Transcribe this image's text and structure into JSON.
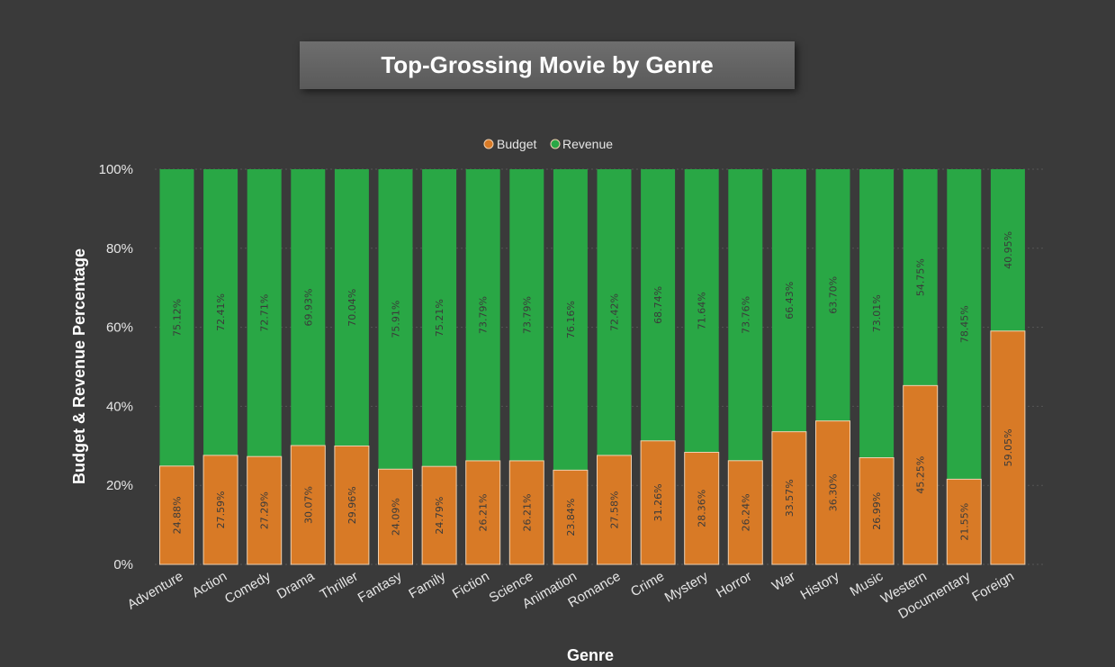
{
  "header": {
    "title": "Top-Grossing Movie by Genre"
  },
  "chart_data": {
    "type": "bar",
    "stacked": "percent",
    "title": "Top-Grossing Movie by Genre",
    "xlabel": "Genre",
    "ylabel": "Budget & Revenue Percentage",
    "ylim": [
      0,
      100
    ],
    "yticks": [
      "0%",
      "20%",
      "40%",
      "60%",
      "80%",
      "100%"
    ],
    "grid": "horizontal dotted",
    "legend_position": "top",
    "categories": [
      "Adventure",
      "Action",
      "Comedy",
      "Drama",
      "Thriller",
      "Fantasy",
      "Family",
      "Fiction",
      "Science",
      "Animation",
      "Romance",
      "Crime",
      "Mystery",
      "Horror",
      "War",
      "History",
      "Music",
      "Western",
      "Documentary",
      "Foreign"
    ],
    "series": [
      {
        "name": "Budget",
        "color": "#d87a26",
        "values": [
          24.88,
          27.59,
          27.29,
          30.07,
          29.96,
          24.09,
          24.79,
          26.21,
          26.21,
          23.84,
          27.58,
          31.26,
          28.36,
          26.24,
          33.57,
          36.3,
          26.99,
          45.25,
          21.55,
          59.05
        ],
        "labels": [
          "24.88%",
          "27.59%",
          "27.29%",
          "30.07%",
          "29.96%",
          "24.09%",
          "24.79%",
          "26.21%",
          "26.21%",
          "23.84%",
          "27.58%",
          "31.26%",
          "28.36%",
          "26.24%",
          "33.57%",
          "36.30%",
          "26.99%",
          "45.25%",
          "21.55%",
          "59.05%"
        ]
      },
      {
        "name": "Revenue",
        "color": "#29a745",
        "values": [
          75.12,
          72.41,
          72.71,
          69.93,
          70.04,
          75.91,
          75.21,
          73.79,
          73.79,
          76.16,
          72.42,
          68.74,
          71.64,
          73.76,
          66.43,
          63.7,
          73.01,
          54.75,
          78.45,
          40.95
        ],
        "labels": [
          "75.12%",
          "72.41%",
          "72.71%",
          "69.93%",
          "70.04%",
          "75.91%",
          "75.21%",
          "73.79%",
          "73.79%",
          "76.16%",
          "72.42%",
          "68.74%",
          "71.64%",
          "73.76%",
          "66.43%",
          "63.70%",
          "73.01%",
          "54.75%",
          "78.45%",
          "40.95%"
        ]
      }
    ]
  }
}
